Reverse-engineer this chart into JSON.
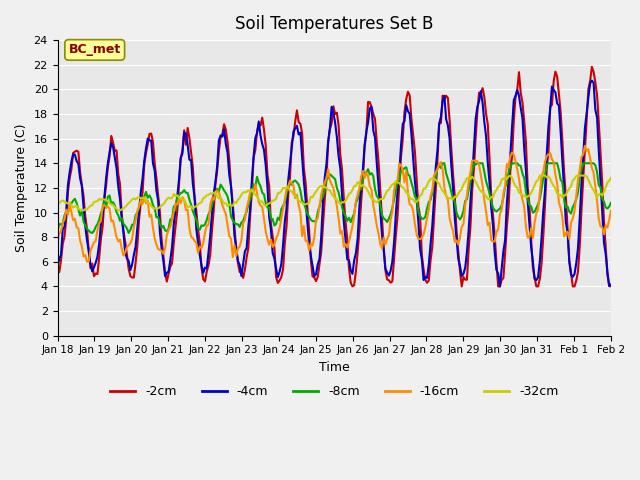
{
  "title": "Soil Temperatures Set B",
  "xlabel": "Time",
  "ylabel": "Soil Temperature (C)",
  "ylim": [
    0,
    24
  ],
  "yticks": [
    0,
    2,
    4,
    6,
    8,
    10,
    12,
    14,
    16,
    18,
    20,
    22,
    24
  ],
  "annotation": "BC_met",
  "annotation_color": "#8B0000",
  "annotation_bg": "#FFFF99",
  "fig_bg": "#F0F0F0",
  "ax_bg": "#E8E8E8",
  "series_colors": {
    "-2cm": "#CC0000",
    "-4cm": "#0000CC",
    "-8cm": "#00AA00",
    "-16cm": "#FF8C00",
    "-32cm": "#CCCC00"
  },
  "series_lw": 1.5,
  "x_tick_labels": [
    "Jan 18",
    "Jan 19",
    "Jan 20",
    "Jan 21",
    "Jan 22",
    "Jan 23",
    "Jan 24",
    "Jan 25",
    "Jan 26",
    "Jan 27",
    "Jan 28",
    "Jan 29",
    "Jan 30",
    "Jan 31",
    "Feb 1",
    "Feb 2"
  ],
  "num_points": 320,
  "days": 15
}
